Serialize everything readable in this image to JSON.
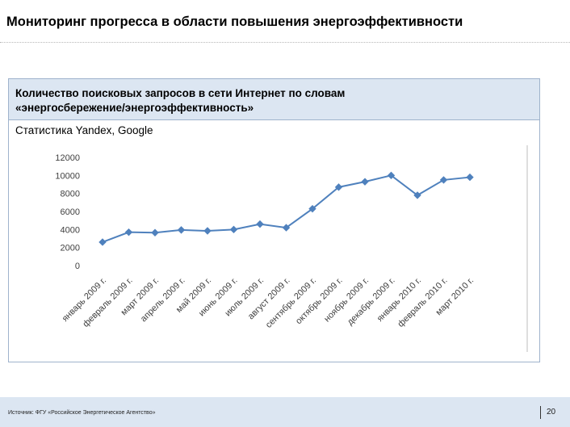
{
  "slide": {
    "title": "Мониторинг прогресса в области повышения энергоэффективности"
  },
  "panel": {
    "title_line1": "Количество поисковых запросов в сети Интернет по словам",
    "title_line2": "«энергосбережение/энергоэффективность»",
    "subtitle": "Статистика Yandex, Google"
  },
  "chart_data": {
    "type": "line",
    "categories": [
      "январь 2009 г.",
      "февраль 2009 г.",
      "март 2009 г.",
      "апрель 2009 г.",
      "май 2009 г.",
      "июнь 2009 г.",
      "июль 2009 г.",
      "август 2009 г.",
      "сентябрь 2009 г.",
      "октябрь 2009 г.",
      "ноябрь 2009 г.",
      "декабрь 2009 г.",
      "январь 2010 г.",
      "февраль 2010 г.",
      "март 2010 г."
    ],
    "series": [
      {
        "values": [
          2600,
          3700,
          3650,
          3950,
          3850,
          4000,
          4600,
          4200,
          6300,
          8700,
          9300,
          10000,
          7800,
          9500,
          9800
        ]
      }
    ],
    "ylim": [
      0,
      12000
    ],
    "yticks": [
      "0",
      "2000",
      "4000",
      "6000",
      "8000",
      "10000",
      "12000"
    ],
    "title": "",
    "xlabel": "",
    "ylabel": "",
    "grid": false,
    "legend": "none",
    "line_color": "#4f81bd",
    "marker": "diamond"
  },
  "footer": {
    "source": "Источник: ФГУ «Российское Энергетическое Агентство»",
    "page": "20"
  },
  "colors": {
    "panel_header": "#dce6f2",
    "panel_border": "#9fb3cc",
    "footer_bar": "#dce6f2"
  }
}
